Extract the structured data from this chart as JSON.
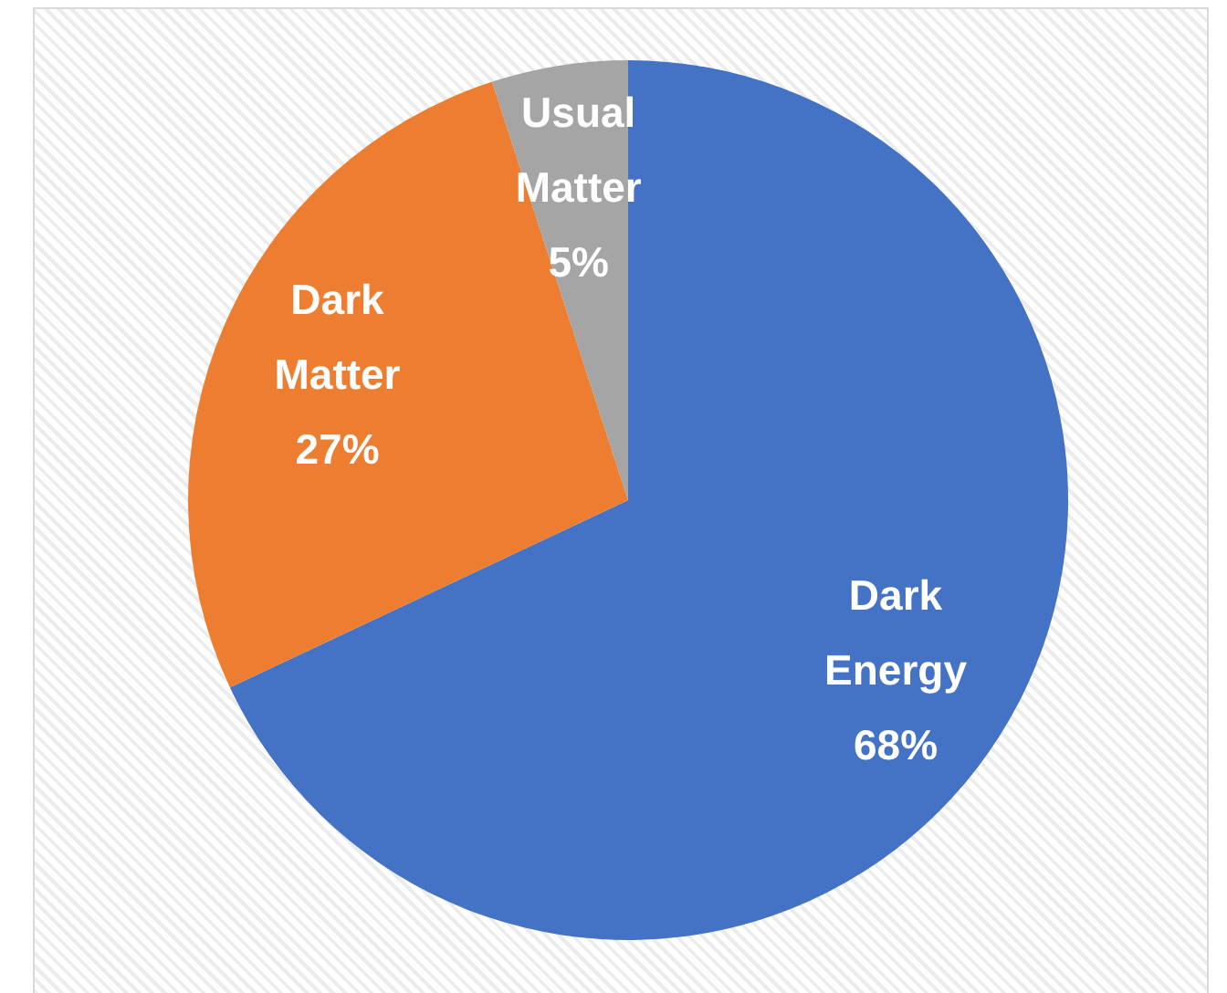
{
  "chart_data": {
    "type": "pie",
    "categories": [
      "Dark Energy",
      "Dark Matter",
      "Usual Matter"
    ],
    "values": [
      68,
      27,
      5
    ],
    "colors": [
      "#4472c4",
      "#ed7d31",
      "#a5a5a5"
    ],
    "value_labels": [
      "68%",
      "27%",
      "5%"
    ]
  }
}
